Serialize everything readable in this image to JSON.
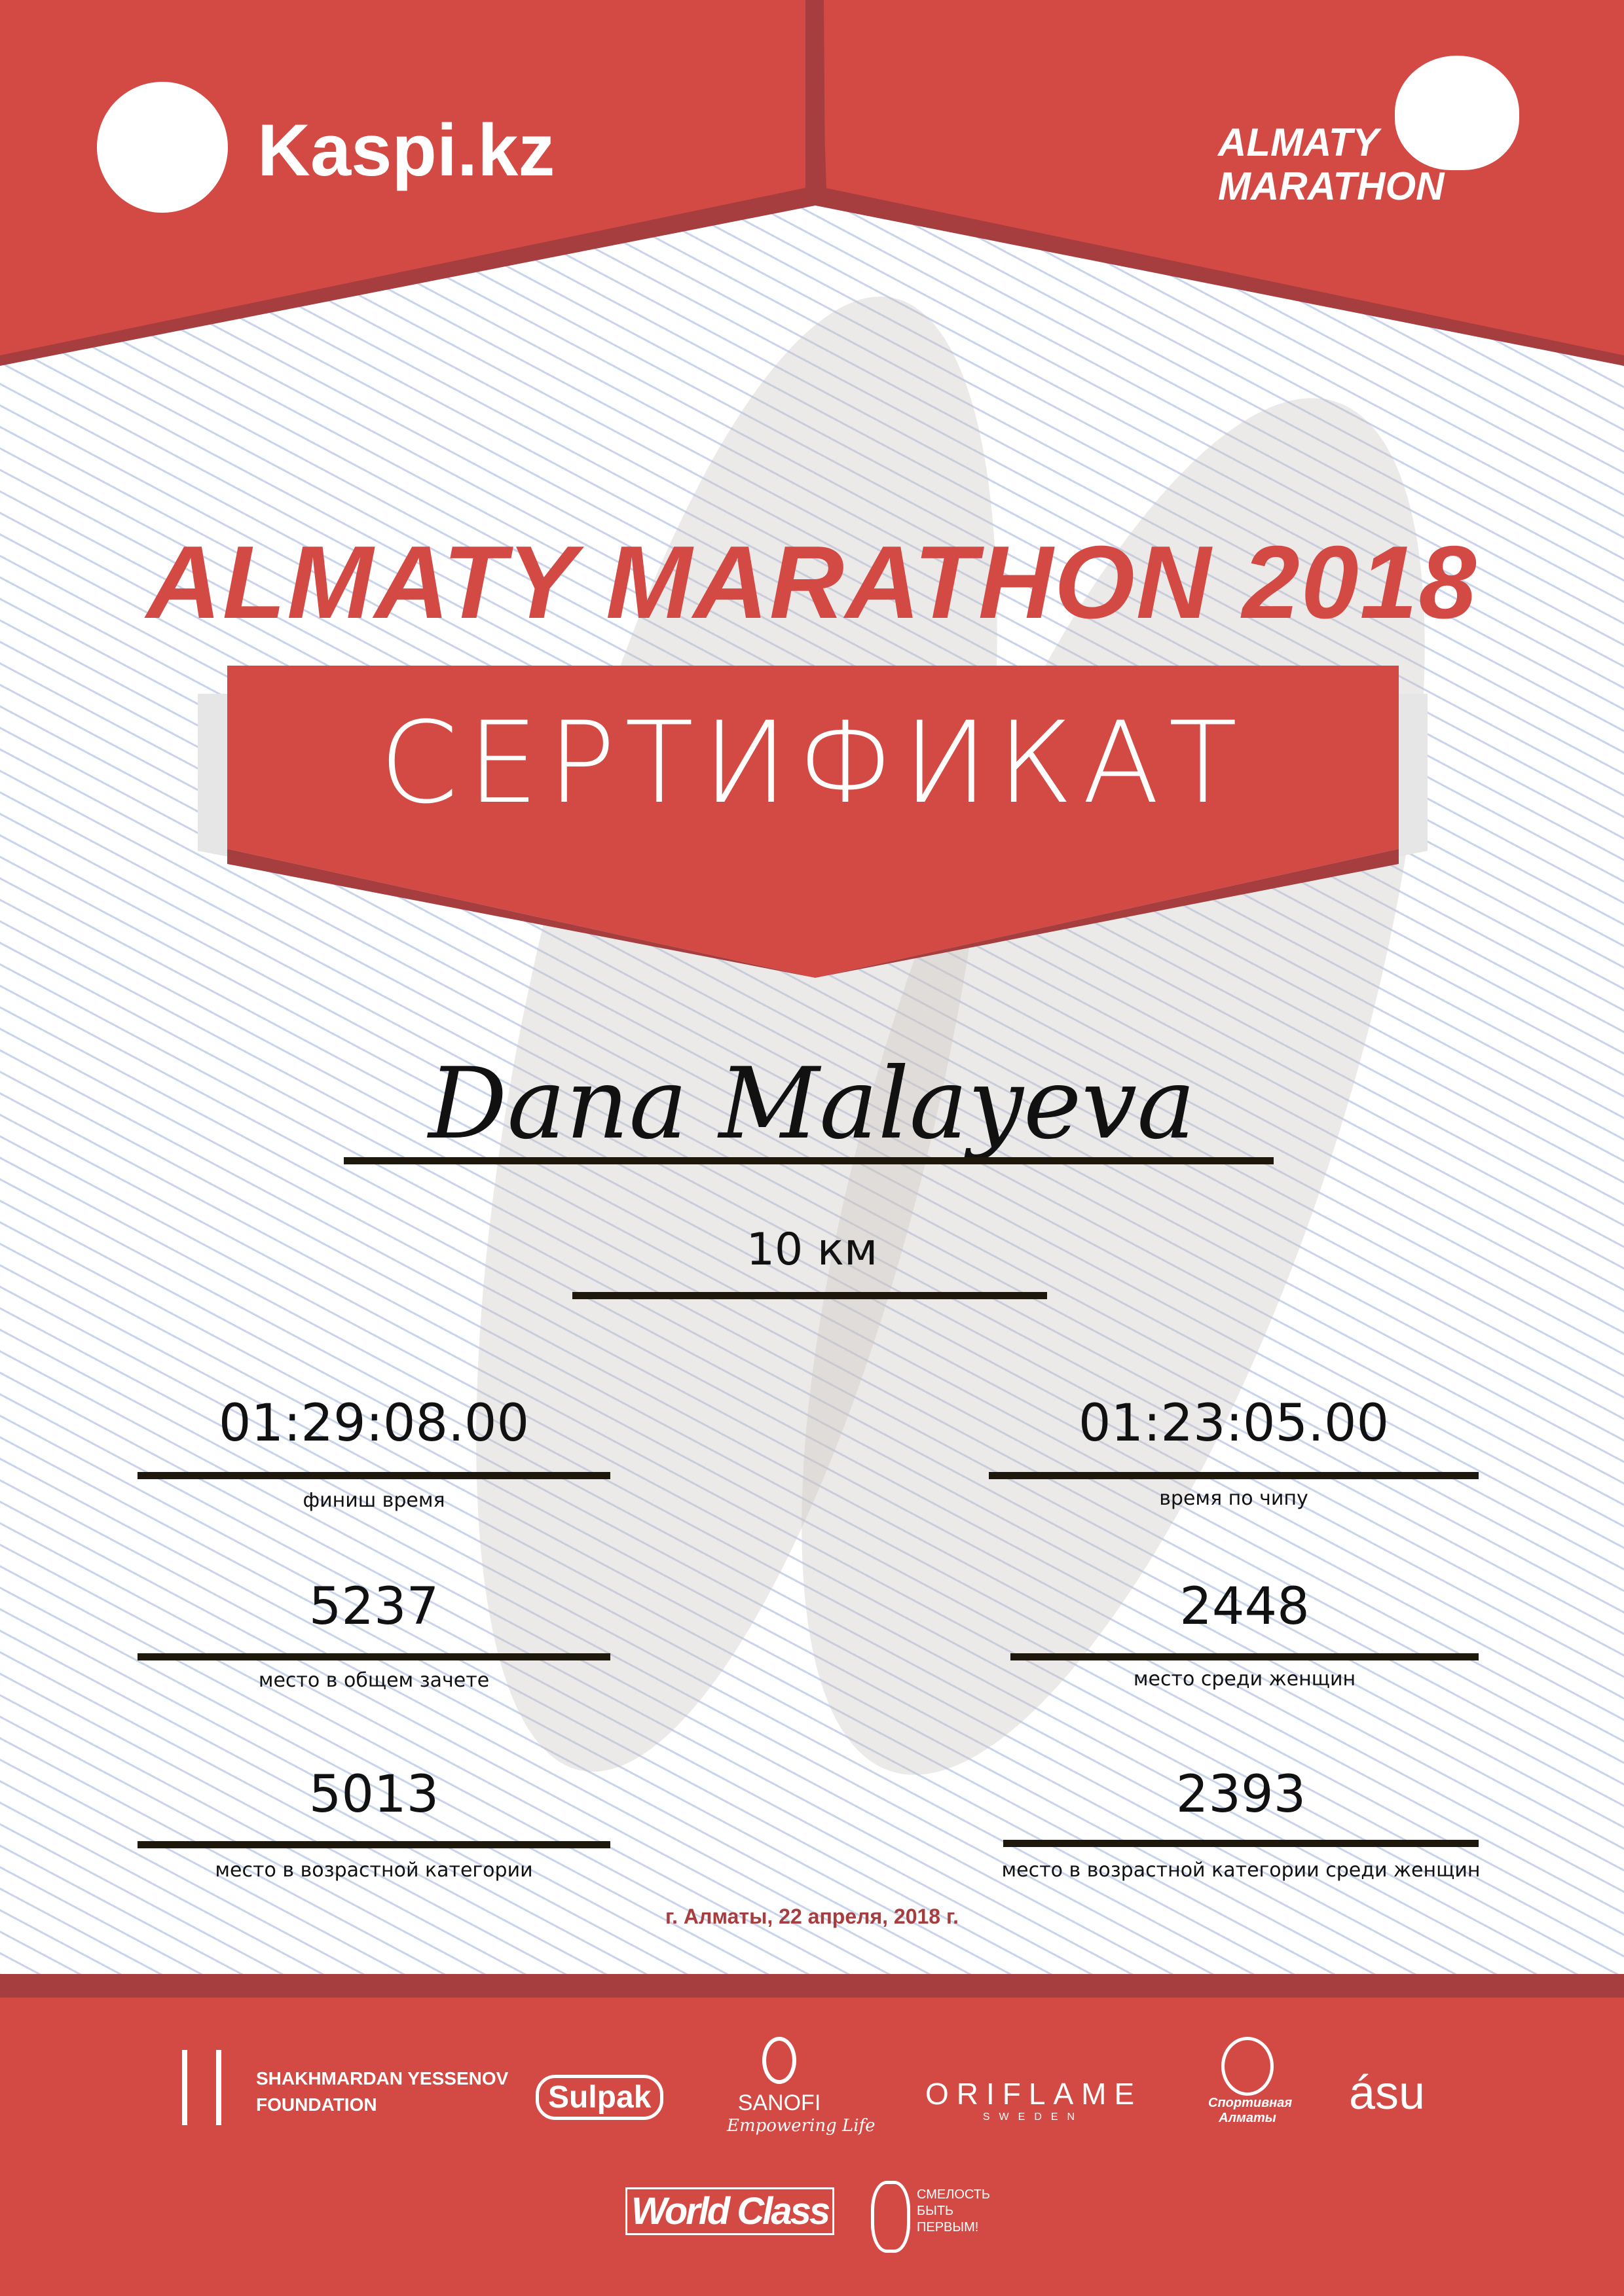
{
  "colors": {
    "brand_red": "#d34a45",
    "dark_red": "#a63d3f",
    "rule": "#1e170c"
  },
  "header": {
    "sponsor_logo": "Kaspi.kz",
    "event_logo_line1": "ALMATY",
    "event_logo_line2": "MARATHON"
  },
  "title": "ALMATY MARATHON 2018",
  "certificate_label": "СЕРТИФИКАТ",
  "participant": {
    "name": "Dana Malayeva",
    "distance": "10 км"
  },
  "results": {
    "finish_time": {
      "value": "01:29:08.00",
      "label": "финиш время"
    },
    "chip_time": {
      "value": "01:23:05.00",
      "label": "время по чипу"
    },
    "overall_place": {
      "value": "5237",
      "label": "место в общем зачете"
    },
    "women_place": {
      "value": "2448",
      "label": "место среди женщин"
    },
    "age_place": {
      "value": "5013",
      "label": "место в возрастной категории"
    },
    "age_women_place": {
      "value": "2393",
      "label": "место в возрастной категории среди женщин"
    }
  },
  "date_line": "г. Алматы, 22 апреля, 2018 г.",
  "sponsors": {
    "yessenov_1": "SHAKHMARDAN YESSENOV",
    "yessenov_2": "FOUNDATION",
    "sulpak": "Sulpak",
    "sanofi": "SANOFI",
    "sanofi_tagline": "Empowering Life",
    "oriflame": "ORIFLAME",
    "oriflame_sub": "SWEDEN",
    "sport_almaty": "Спортивная Алматы",
    "asu": "ásu",
    "worldclass": "World Class",
    "fund_1": "СМЕЛОСТЬ",
    "fund_2": "БЫТЬ",
    "fund_3": "ПЕРВЫМ!"
  }
}
